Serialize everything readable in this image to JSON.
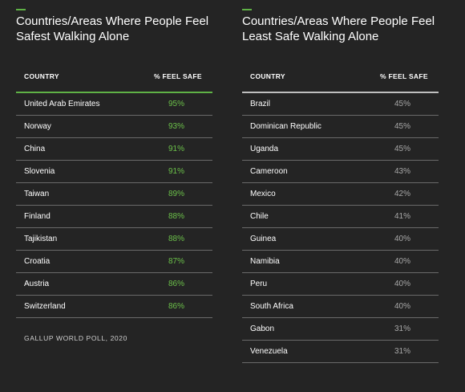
{
  "chart_data": [
    {
      "type": "table",
      "title": "Countries/Areas Where People Feel Safest Walking Alone",
      "columns": [
        "COUNTRY",
        "% FEEL SAFE"
      ],
      "rows": [
        {
          "country": "United Arab Emirates",
          "value": "95%"
        },
        {
          "country": "Norway",
          "value": "93%"
        },
        {
          "country": "China",
          "value": "91%"
        },
        {
          "country": "Slovenia",
          "value": "91%"
        },
        {
          "country": "Taiwan",
          "value": "89%"
        },
        {
          "country": "Finland",
          "value": "88%"
        },
        {
          "country": "Tajikistan",
          "value": "88%"
        },
        {
          "country": "Croatia",
          "value": "87%"
        },
        {
          "country": "Austria",
          "value": "86%"
        },
        {
          "country": "Switzerland",
          "value": "86%"
        }
      ],
      "accent_color": "#5fb246"
    },
    {
      "type": "table",
      "title": "Countries/Areas Where People Feel Least Safe Walking Alone",
      "columns": [
        "COUNTRY",
        "% FEEL SAFE"
      ],
      "rows": [
        {
          "country": "Brazil",
          "value": "45%"
        },
        {
          "country": "Dominican Republic",
          "value": "45%"
        },
        {
          "country": "Uganda",
          "value": "45%"
        },
        {
          "country": "Cameroon",
          "value": "43%"
        },
        {
          "country": "Mexico",
          "value": "42%"
        },
        {
          "country": "Chile",
          "value": "41%"
        },
        {
          "country": "Guinea",
          "value": "40%"
        },
        {
          "country": "Namibia",
          "value": "40%"
        },
        {
          "country": "Peru",
          "value": "40%"
        },
        {
          "country": "South Africa",
          "value": "40%"
        },
        {
          "country": "Gabon",
          "value": "31%"
        },
        {
          "country": "Venezuela",
          "value": "31%"
        }
      ],
      "accent_color": "#5fb246"
    }
  ],
  "source": "GALLUP WORLD POLL, 2020"
}
